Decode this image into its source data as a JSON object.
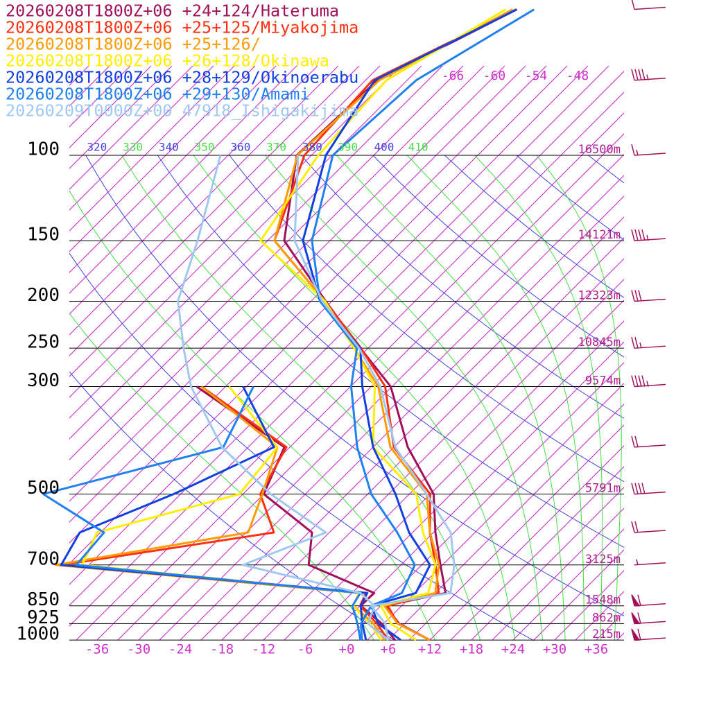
{
  "chart_data": {
    "type": "skewt",
    "pressure_levels": [
      1000,
      925,
      850,
      800,
      700,
      600,
      500,
      400,
      300,
      250,
      200,
      150,
      100,
      70,
      50
    ],
    "yticks": [
      100,
      150,
      200,
      250,
      300,
      500,
      700,
      850,
      925,
      1000
    ],
    "height_labels": [
      "16500m",
      "14121m",
      "12323m",
      "10845m",
      "9574m",
      "5791m",
      "3125m",
      "1548m",
      "862m",
      "215m"
    ],
    "xticks": [
      -36,
      -30,
      -24,
      -18,
      -12,
      -6,
      {
        "value": 0,
        "label": "+0"
      },
      {
        "value": 6,
        "label": "+6"
      },
      {
        "value": 12,
        "label": "+12"
      },
      {
        "value": 18,
        "label": "+18"
      },
      {
        "value": 24,
        "label": "+24"
      },
      {
        "value": 30,
        "label": "+30"
      },
      {
        "value": 36,
        "label": "+36"
      }
    ],
    "isotherm_top_labels": [
      -66,
      -60,
      -54,
      -48
    ],
    "theta_labels": [
      320,
      330,
      340,
      350,
      360,
      370,
      380,
      390,
      400,
      410
    ],
    "series": [
      {
        "name": "20260208T1800Z+06 +24+124/Hateruma",
        "color": "#a0105a",
        "temperature": [
          12,
          5.2,
          0.6,
          7.5,
          2.7,
          -2.7,
          -8.5,
          -19,
          -30.2,
          -40.1,
          -51.9,
          -66.6,
          -77.1,
          -76.3,
          -66.4
        ],
        "dewpoint": [
          7,
          2.7,
          -2.9,
          -2.8,
          -16.3,
          -20.5,
          -33,
          -36.8,
          -58.2,
          null,
          null,
          null,
          null,
          null,
          null
        ]
      },
      {
        "name": "20260208T1800Z+06 +25+125/Miyakojima",
        "color": "#ff3010",
        "temperature": [
          12,
          5,
          1,
          6.5,
          2,
          -3.5,
          -9,
          -21,
          -31,
          -40,
          -52,
          -68,
          -76,
          -77,
          -66.5
        ],
        "dewpoint": [
          6,
          2,
          -3,
          -4,
          -52,
          -26,
          -33.5,
          -36.5,
          -57.5,
          null,
          null,
          null,
          null,
          null,
          null
        ]
      },
      {
        "name": "20260208T1800Z+06 +25+126/",
        "color": "#ff9a00",
        "temperature": [
          12,
          5,
          0.5,
          6,
          2.5,
          -3.5,
          -9.5,
          -21.5,
          -32,
          -41,
          -52,
          -68,
          -77,
          -76,
          -67
        ],
        "dewpoint": [
          5.5,
          1.5,
          -4,
          -5,
          -52.8,
          -29.7,
          -33.2,
          -37.8,
          -57.5,
          null,
          null,
          null,
          null,
          null,
          null
        ]
      },
      {
        "name": "20260208T1800Z+06 +26+128/Okinawa",
        "color": "#ffee00",
        "temperature": [
          10,
          4,
          0,
          5,
          2,
          -4.5,
          -11,
          -24,
          -32.5,
          -41,
          -52,
          -70,
          -74,
          -75,
          -68
        ],
        "dewpoint": [
          5,
          1,
          -4,
          -5,
          -49,
          -51.5,
          -36.5,
          -37.8,
          -53.5,
          null,
          null,
          null,
          null,
          null,
          null
        ]
      },
      {
        "name": "20260208T1800Z+06 +28+129/Okinoerabu",
        "color": "#1040e0",
        "temperature": [
          7.8,
          2.2,
          -1.4,
          3.2,
          1.2,
          -6.5,
          -14,
          -24,
          -34.3,
          -40.1,
          -52.7,
          -63.9,
          -72.9,
          -76.7,
          -66.4
        ],
        "dewpoint": [
          2.8,
          -0.1,
          -2.9,
          -3.8,
          -52,
          -54,
          -46,
          -38.3,
          -51.5,
          null,
          null,
          null,
          null,
          null,
          null
        ]
      },
      {
        "name": "20260208T1800Z+06 +29+130/Amami",
        "color": "#2080f0",
        "temperature": [
          2.2,
          -0.3,
          -1.4,
          1.2,
          -1,
          -8.2,
          -17.5,
          -26.3,
          -35.9,
          -40.6,
          -52.7,
          -62.6,
          -71.9,
          -70.7,
          -63.9
        ],
        "dewpoint": [
          2,
          -0.8,
          -4.1,
          -4.8,
          -49.8,
          -50.5,
          -64.8,
          -45.6,
          -50,
          null,
          null,
          null,
          null,
          null,
          null
        ]
      },
      {
        "name": "20260209T0000Z+00 47918_Ishigakijima",
        "color": "#a0c8f0",
        "temperature": [
          6,
          3.2,
          -1.4,
          8.2,
          4.7,
          -0.5,
          -9.5,
          -20.8,
          -31.7,
          -40.3,
          -52.4,
          -65.1,
          -76.9,
          null,
          null
        ],
        "dewpoint": [
          6,
          0.7,
          -0.9,
          -4.8,
          -25.8,
          -18.5,
          -32,
          -45.8,
          -59,
          -65.6,
          -73.2,
          -79.1,
          -88.1,
          null,
          null
        ]
      }
    ],
    "wind_levels": [
      50,
      70,
      100,
      150,
      200,
      250,
      300,
      400,
      500,
      600,
      700,
      850,
      925,
      1000
    ],
    "wind_speed": [
      10,
      45,
      15,
      45,
      30,
      25,
      45,
      20,
      40,
      20,
      5,
      60,
      60,
      60
    ]
  }
}
